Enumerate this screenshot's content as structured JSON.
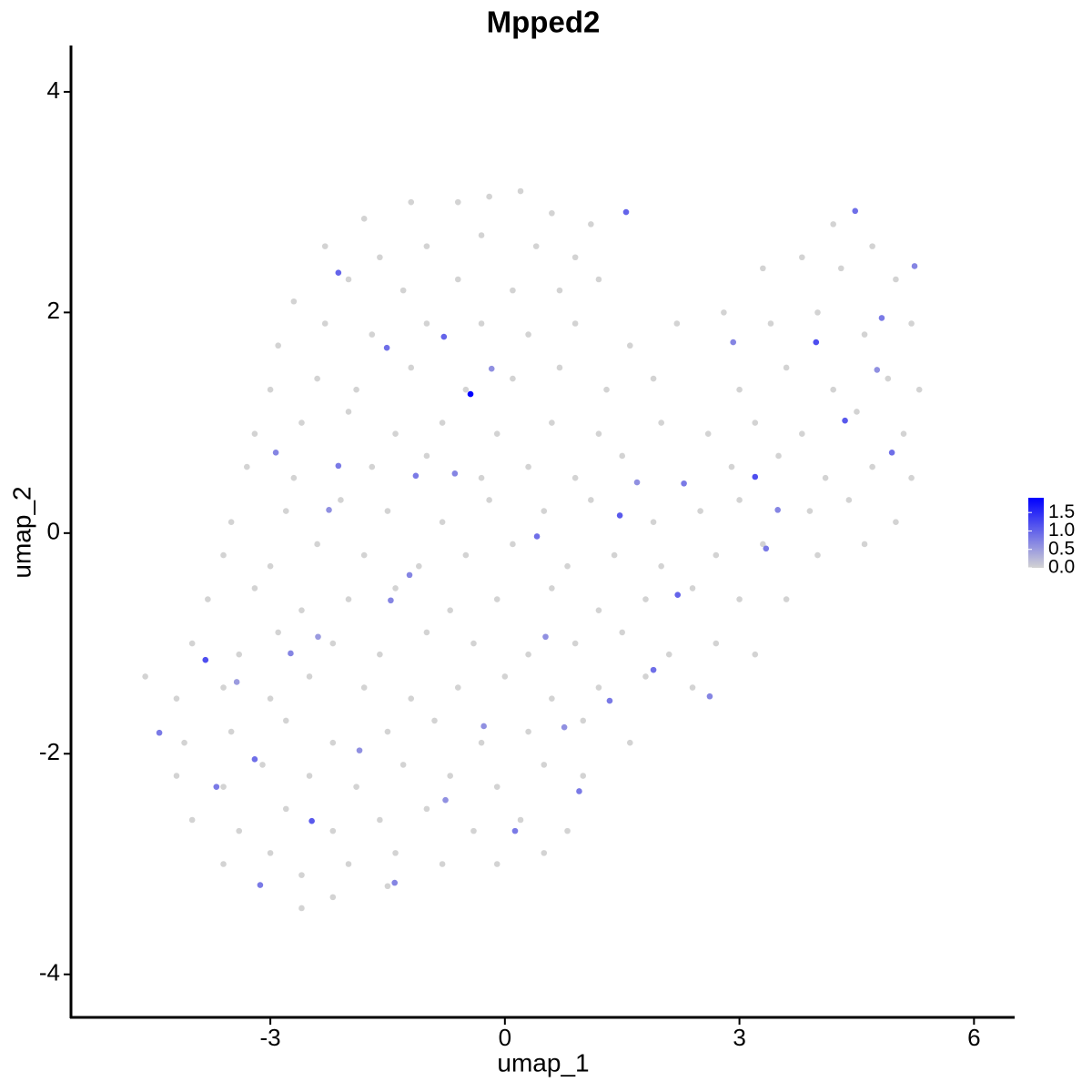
{
  "chart_data": {
    "type": "scatter",
    "title": "Mpped2",
    "x_label": "umap_1",
    "y_label": "umap_2",
    "xlim": [
      -5.55,
      6.52
    ],
    "ylim": [
      -4.39,
      4.42
    ],
    "xticks": [
      -3,
      0,
      3,
      6
    ],
    "yticks": [
      -4,
      -2,
      0,
      2,
      4
    ],
    "color_low": "#d3d3d3",
    "color_high": "#0000ff",
    "colorlim": [
      0,
      1.9
    ],
    "color_ticks": [
      {
        "value": 0,
        "label": "0.0"
      },
      0.5,
      {
        "value": 1,
        "label": "1.0"
      },
      1.5
    ],
    "x": [
      -1.8,
      -1.2,
      -0.6,
      -0.2,
      0.2,
      0.6,
      1.1,
      -2.3,
      -1.6,
      -1.0,
      -0.3,
      0.4,
      0.9,
      4.2,
      4.7,
      -2.7,
      -2.0,
      -1.3,
      -0.6,
      0.1,
      0.7,
      1.2,
      3.3,
      3.8,
      4.3,
      5.0,
      -2.9,
      -2.3,
      -1.7,
      -1.0,
      -0.3,
      0.3,
      0.9,
      1.6,
      2.2,
      2.8,
      3.4,
      4.0,
      4.6,
      5.2,
      -3.0,
      -2.4,
      -1.9,
      -1.2,
      -0.5,
      0.1,
      0.7,
      1.3,
      1.9,
      3.0,
      3.6,
      4.2,
      4.9,
      5.3,
      -3.2,
      -2.6,
      -2.0,
      -1.4,
      -0.8,
      -0.1,
      0.6,
      1.2,
      2.0,
      2.6,
      3.2,
      3.8,
      4.5,
      5.1,
      -3.3,
      -2.7,
      -1.7,
      -1.0,
      -0.3,
      0.3,
      0.9,
      1.5,
      2.9,
      3.5,
      4.1,
      4.7,
      5.2,
      -3.5,
      -2.8,
      -2.1,
      -1.5,
      -0.8,
      -0.2,
      0.5,
      1.1,
      1.9,
      2.5,
      3.0,
      3.9,
      4.4,
      5.0,
      -3.6,
      -3.0,
      -2.4,
      -1.8,
      -1.1,
      -0.5,
      0.1,
      0.8,
      1.4,
      2.0,
      2.7,
      3.3,
      4.0,
      4.6,
      -3.8,
      -3.2,
      -2.6,
      -2.0,
      -1.4,
      -0.7,
      -0.1,
      0.6,
      1.2,
      1.8,
      2.4,
      3.0,
      3.6,
      -4.0,
      -3.4,
      -2.9,
      -2.2,
      -1.6,
      -1.0,
      -0.4,
      0.3,
      0.9,
      1.5,
      2.1,
      2.7,
      3.2,
      -4.6,
      -4.2,
      -3.6,
      -3.0,
      -2.5,
      -1.8,
      -1.2,
      -0.6,
      0.0,
      0.6,
      1.2,
      1.8,
      2.4,
      -4.1,
      -3.5,
      -2.8,
      -2.2,
      -1.5,
      -0.9,
      -0.3,
      0.3,
      1.0,
      1.6,
      -4.2,
      -3.6,
      -3.1,
      -2.5,
      -1.9,
      -1.3,
      -0.7,
      -0.1,
      0.5,
      1.0,
      -4.0,
      -3.4,
      -2.8,
      -2.2,
      -1.6,
      -1.0,
      -0.4,
      0.2,
      0.8,
      -3.6,
      -3.0,
      -2.6,
      -2.0,
      -1.4,
      -0.8,
      -0.1,
      0.5,
      -2.6,
      -2.2,
      -1.5,
      -0.44,
      1.55,
      -3.83,
      -4.42,
      -2.13,
      -1.51,
      -0.78,
      -1.14,
      -2.13,
      -2.93,
      1.47,
      3.2,
      3.98,
      4.35,
      4.48,
      4.82,
      4.95,
      5.24,
      2.21,
      1.9,
      1.34,
      0.41,
      -0.64,
      -2.47,
      -3.2,
      -3.13,
      -1.41,
      0.13,
      0.95,
      -1.46,
      -2.74,
      -3.69,
      2.62,
      3.34,
      3.49,
      2.92,
      4.76,
      2.29,
      -0.17,
      -2.25,
      -1.22,
      -1.86,
      -0.76,
      0.76,
      -0.27,
      1.69,
      0.52,
      -3.43,
      -2.39
    ],
    "y": [
      2.85,
      3.0,
      3.0,
      3.05,
      3.1,
      2.9,
      2.8,
      2.6,
      2.5,
      2.6,
      2.7,
      2.6,
      2.5,
      2.8,
      2.6,
      2.1,
      2.3,
      2.2,
      2.3,
      2.2,
      2.2,
      2.3,
      2.4,
      2.5,
      2.4,
      2.3,
      1.7,
      1.9,
      1.8,
      1.9,
      1.9,
      1.8,
      1.9,
      1.7,
      1.9,
      2.0,
      1.9,
      2.0,
      1.8,
      1.9,
      1.3,
      1.4,
      1.3,
      1.5,
      1.3,
      1.4,
      1.5,
      1.3,
      1.4,
      1.3,
      1.5,
      1.3,
      1.4,
      1.3,
      0.9,
      1.0,
      1.1,
      0.9,
      1.0,
      0.9,
      1.0,
      0.9,
      1.0,
      0.9,
      1.0,
      0.9,
      1.1,
      0.9,
      0.6,
      0.5,
      0.6,
      0.7,
      0.5,
      0.6,
      0.5,
      0.7,
      0.6,
      0.7,
      0.5,
      0.6,
      0.5,
      0.1,
      0.2,
      0.3,
      0.2,
      0.1,
      0.3,
      0.2,
      0.3,
      0.1,
      0.2,
      0.3,
      0.2,
      0.3,
      0.1,
      -0.2,
      -0.3,
      -0.1,
      -0.2,
      -0.3,
      -0.2,
      -0.1,
      -0.3,
      -0.2,
      -0.3,
      -0.2,
      -0.1,
      -0.2,
      -0.1,
      -0.6,
      -0.5,
      -0.7,
      -0.6,
      -0.5,
      -0.7,
      -0.6,
      -0.5,
      -0.7,
      -0.6,
      -0.5,
      -0.6,
      -0.6,
      -1.0,
      -1.1,
      -0.9,
      -1.0,
      -1.1,
      -0.9,
      -1.0,
      -1.1,
      -1.0,
      -0.9,
      -1.1,
      -1.0,
      -1.1,
      -1.3,
      -1.5,
      -1.4,
      -1.5,
      -1.3,
      -1.4,
      -1.5,
      -1.4,
      -1.3,
      -1.5,
      -1.4,
      -1.3,
      -1.4,
      -1.9,
      -1.8,
      -1.7,
      -1.9,
      -1.8,
      -1.7,
      -1.9,
      -1.8,
      -1.7,
      -1.9,
      -2.2,
      -2.3,
      -2.1,
      -2.2,
      -2.3,
      -2.1,
      -2.2,
      -2.3,
      -2.1,
      -2.2,
      -2.6,
      -2.7,
      -2.5,
      -2.7,
      -2.6,
      -2.5,
      -2.7,
      -2.6,
      -2.7,
      -3.0,
      -2.9,
      -3.1,
      -3.0,
      -2.9,
      -3.0,
      -3.0,
      -2.9,
      -3.4,
      -3.3,
      -3.2,
      1.26,
      2.91,
      -1.15,
      -1.81,
      2.36,
      1.68,
      1.78,
      0.52,
      0.61,
      0.73,
      0.16,
      0.51,
      1.73,
      1.02,
      2.92,
      1.95,
      0.73,
      2.42,
      -0.56,
      -1.24,
      -1.52,
      -0.03,
      0.54,
      -2.61,
      -2.05,
      -3.19,
      -3.17,
      -2.7,
      -2.34,
      -0.61,
      -1.09,
      -2.3,
      -1.48,
      -0.14,
      0.21,
      1.73,
      1.48,
      0.45,
      1.49,
      0.21,
      -0.38,
      -1.97,
      -2.42,
      -1.76,
      -1.75,
      0.46,
      -0.94,
      -1.35,
      -0.94
    ],
    "values": [
      0,
      0,
      0,
      0,
      0,
      0,
      0,
      0,
      0,
      0,
      0,
      0,
      0,
      0,
      0,
      0,
      0,
      0,
      0,
      0,
      0,
      0,
      0,
      0,
      0,
      0,
      0,
      0,
      0,
      0,
      0,
      0,
      0,
      0,
      0,
      0,
      0,
      0,
      0,
      0,
      0,
      0,
      0,
      0,
      0,
      0,
      0,
      0,
      0,
      0,
      0,
      0,
      0,
      0,
      0,
      0,
      0,
      0,
      0,
      0,
      0,
      0,
      0,
      0,
      0,
      0,
      0,
      0,
      0,
      0,
      0,
      0,
      0,
      0,
      0,
      0,
      0,
      0,
      0,
      0,
      0,
      0,
      0,
      0,
      0,
      0,
      0,
      0,
      0,
      0,
      0,
      0,
      0,
      0,
      0,
      0,
      0,
      0,
      0,
      0,
      0,
      0,
      0,
      0,
      0,
      0,
      0,
      0,
      0,
      0,
      0,
      0,
      0,
      0,
      0,
      0,
      0,
      0,
      0,
      0,
      0,
      0,
      0,
      0,
      0,
      0,
      0,
      0,
      0,
      0,
      0,
      0,
      0,
      0,
      0,
      0,
      0,
      0,
      0,
      0,
      0,
      0,
      0,
      0,
      0,
      0,
      0,
      0,
      0,
      0,
      0,
      0,
      0,
      0,
      0,
      0,
      0,
      0,
      0,
      0,
      0,
      0,
      0,
      0,
      0,
      0,
      0,
      0,
      0,
      0,
      0,
      0,
      0,
      0,
      0,
      0,
      0,
      0,
      0,
      0,
      0,
      0,
      0,
      0,
      0,
      0,
      0,
      0,
      1.9,
      1.0,
      1.2,
      0.8,
      1.0,
      0.9,
      1.0,
      0.8,
      0.8,
      0.7,
      1.1,
      1.2,
      1.2,
      1.1,
      0.9,
      0.8,
      0.9,
      0.7,
      1.0,
      0.9,
      0.8,
      0.9,
      0.7,
      1.1,
      0.9,
      0.8,
      0.7,
      0.8,
      0.8,
      0.7,
      0.7,
      0.8,
      0.7,
      0.8,
      0.7,
      0.7,
      0.6,
      0.8,
      0.6,
      0.6,
      0.7,
      0.6,
      0.6,
      0.6,
      0.6,
      0.6,
      0.6,
      0.5,
      0.5
    ]
  }
}
